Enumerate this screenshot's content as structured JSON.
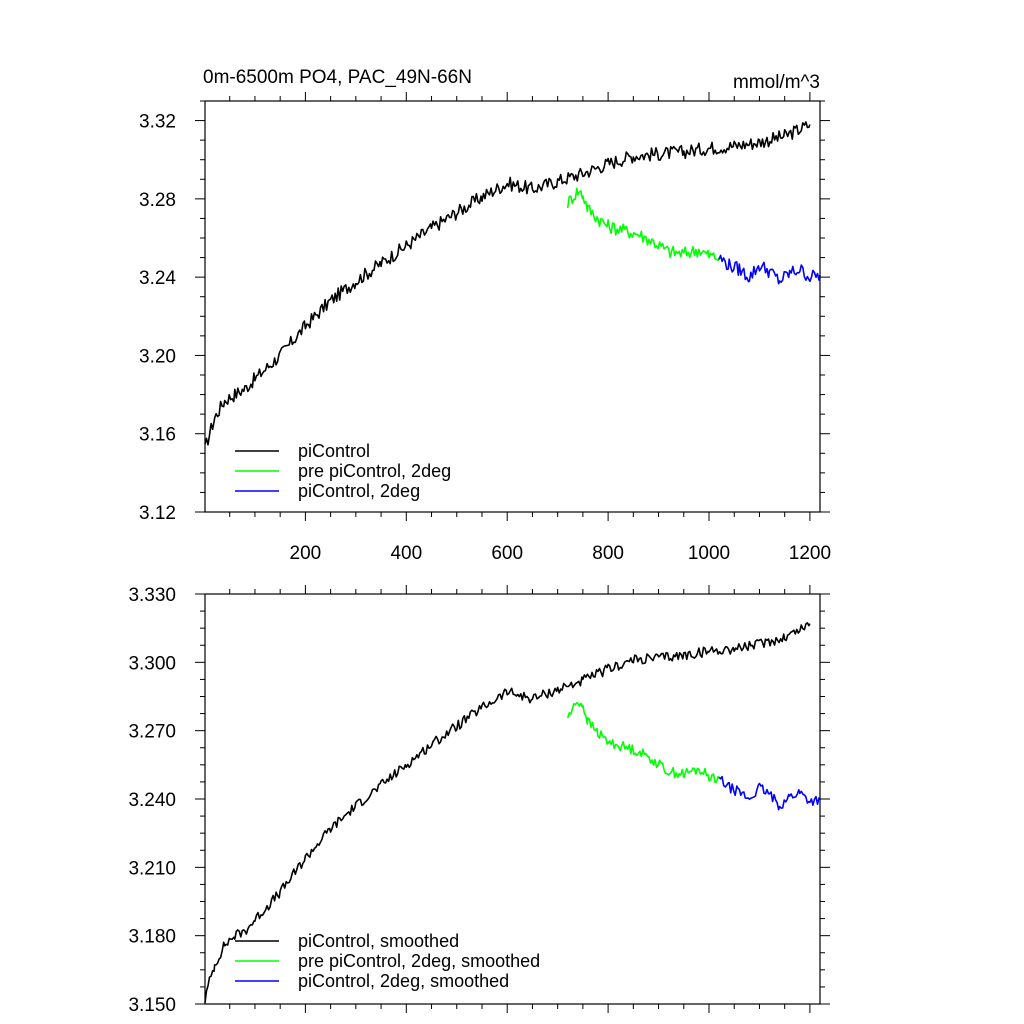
{
  "chart_data": [
    {
      "type": "line",
      "title": "0m-6500m PO4, PAC_49N-66N",
      "units": "mmol/m^3",
      "xlim": [
        1,
        1220
      ],
      "ylim": [
        3.12,
        3.33
      ],
      "xticks": [
        200,
        400,
        600,
        800,
        1000,
        1200
      ],
      "xtick_labels": [
        "200",
        "400",
        "600",
        "800",
        "1000",
        "1200"
      ],
      "yticks": [
        3.12,
        3.16,
        3.2,
        3.24,
        3.28,
        3.32
      ],
      "ytick_labels": [
        "3.12",
        "3.16",
        "3.20",
        "3.24",
        "3.28",
        "3.32"
      ],
      "legend_position": "bottom-left",
      "series": [
        {
          "name": "piControl",
          "color": "#000000",
          "x": [
            1,
            10,
            20,
            40,
            60,
            80,
            100,
            150,
            200,
            250,
            300,
            350,
            400,
            450,
            500,
            550,
            600,
            650,
            700,
            750,
            800,
            850,
            900,
            950,
            1000,
            1050,
            1100,
            1150,
            1200
          ],
          "values": [
            3.152,
            3.16,
            3.168,
            3.177,
            3.18,
            3.183,
            3.188,
            3.2,
            3.215,
            3.228,
            3.238,
            3.247,
            3.256,
            3.265,
            3.273,
            3.281,
            3.288,
            3.285,
            3.289,
            3.293,
            3.298,
            3.302,
            3.303,
            3.304,
            3.306,
            3.307,
            3.309,
            3.312,
            3.318
          ]
        },
        {
          "name": "pre piControl, 2deg",
          "color": "#00ff00",
          "x": [
            720,
            740,
            750,
            760,
            780,
            800,
            830,
            860,
            890,
            920,
            950,
            980,
            1000,
            1020
          ],
          "values": [
            3.278,
            3.284,
            3.282,
            3.275,
            3.27,
            3.266,
            3.264,
            3.262,
            3.258,
            3.253,
            3.252,
            3.254,
            3.251,
            3.25
          ]
        },
        {
          "name": "piControl, 2deg",
          "color": "#0000ff",
          "x": [
            1020,
            1040,
            1060,
            1080,
            1100,
            1120,
            1140,
            1160,
            1180,
            1200,
            1220
          ],
          "values": [
            3.25,
            3.246,
            3.244,
            3.24,
            3.246,
            3.243,
            3.238,
            3.242,
            3.244,
            3.24,
            3.241
          ]
        }
      ]
    },
    {
      "type": "line",
      "title": "",
      "xlim": [
        1,
        1220
      ],
      "ylim": [
        3.15,
        3.33
      ],
      "xticks": [
        200,
        400,
        600,
        800,
        1000,
        1200
      ],
      "yticks": [
        3.15,
        3.18,
        3.21,
        3.24,
        3.27,
        3.3,
        3.33
      ],
      "ytick_labels": [
        "3.150",
        "3.180",
        "3.210",
        "3.240",
        "3.270",
        "3.300",
        "3.330"
      ],
      "legend_position": "bottom-left",
      "series": [
        {
          "name": "piControl, smoothed",
          "color": "#000000",
          "x": [
            1,
            10,
            20,
            40,
            60,
            80,
            100,
            150,
            200,
            250,
            300,
            350,
            400,
            450,
            500,
            550,
            600,
            650,
            700,
            750,
            800,
            850,
            900,
            950,
            1000,
            1050,
            1100,
            1150,
            1200
          ],
          "values": [
            3.152,
            3.16,
            3.167,
            3.176,
            3.18,
            3.182,
            3.187,
            3.199,
            3.214,
            3.227,
            3.237,
            3.246,
            3.255,
            3.264,
            3.272,
            3.28,
            3.287,
            3.284,
            3.288,
            3.292,
            3.297,
            3.301,
            3.302,
            3.303,
            3.305,
            3.306,
            3.308,
            3.311,
            3.317
          ]
        },
        {
          "name": "pre piControl, 2deg, smoothed",
          "color": "#00ff00",
          "x": [
            720,
            740,
            750,
            760,
            780,
            800,
            830,
            860,
            890,
            920,
            950,
            980,
            1000,
            1020
          ],
          "values": [
            3.276,
            3.283,
            3.281,
            3.274,
            3.269,
            3.265,
            3.263,
            3.261,
            3.257,
            3.252,
            3.251,
            3.253,
            3.25,
            3.249
          ]
        },
        {
          "name": "piControl, 2deg, smoothed",
          "color": "#0000ff",
          "x": [
            1020,
            1040,
            1060,
            1080,
            1100,
            1120,
            1140,
            1160,
            1180,
            1200,
            1220
          ],
          "values": [
            3.249,
            3.245,
            3.243,
            3.24,
            3.245,
            3.242,
            3.237,
            3.241,
            3.243,
            3.239,
            3.24
          ]
        }
      ]
    }
  ]
}
